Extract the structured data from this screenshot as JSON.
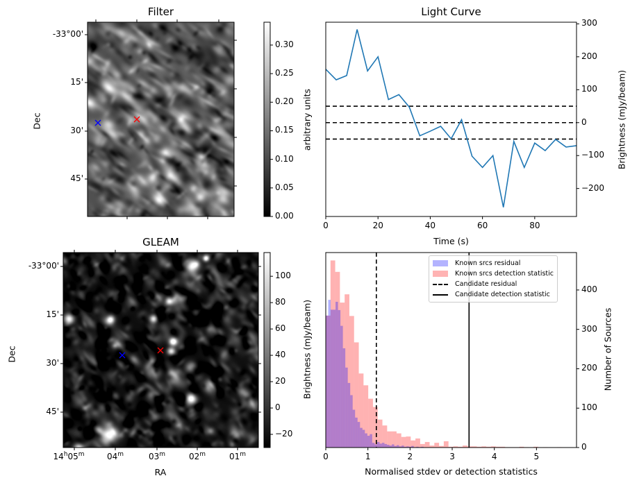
{
  "panels": {
    "filter": {
      "title": "Filter",
      "ylabel": "Dec",
      "yticks": [
        "-33°00'",
        "15'",
        "30'",
        "45'"
      ],
      "colorbar": {
        "label": "arbitrary units",
        "ticks": [
          "0.00",
          "0.05",
          "0.10",
          "0.15",
          "0.20",
          "0.25",
          "0.30"
        ],
        "range": [
          0.0,
          0.34
        ],
        "cmap": "gray"
      },
      "markers": [
        {
          "name": "known-source",
          "symbol": "x",
          "color": "#0000ff"
        },
        {
          "name": "candidate",
          "symbol": "x",
          "color": "#ff0000"
        }
      ]
    },
    "gleam": {
      "title": "GLEAM",
      "ylabel": "Dec",
      "xlabel": "RA",
      "yticks": [
        "-33°00'",
        "15'",
        "30'",
        "45'"
      ],
      "xticks": [
        {
          "main": "14",
          "h": "h",
          "mm": "05",
          "m": "m"
        },
        {
          "main": "",
          "h": "",
          "mm": "04",
          "m": "m"
        },
        {
          "main": "",
          "h": "",
          "mm": "03",
          "m": "m"
        },
        {
          "main": "",
          "h": "",
          "mm": "02",
          "m": "m"
        },
        {
          "main": "",
          "h": "",
          "mm": "01",
          "m": "m"
        }
      ],
      "colorbar": {
        "label": "Brightness (mJy/beam)",
        "ticks": [
          "−20",
          "0",
          "20",
          "40",
          "60",
          "80",
          "100"
        ],
        "range": [
          -30,
          118
        ],
        "cmap": "gray"
      },
      "markers": [
        {
          "name": "known-source",
          "symbol": "x",
          "color": "#0000ff"
        },
        {
          "name": "candidate",
          "symbol": "x",
          "color": "#ff0000"
        }
      ]
    }
  },
  "chart_data": [
    {
      "type": "line",
      "title": "Light Curve",
      "xlabel": "Time (s)",
      "ylabel": "Brightness (mJy/beam)",
      "xlim": [
        0,
        96
      ],
      "ylim": [
        -285,
        305
      ],
      "xticks": [
        "0",
        "20",
        "40",
        "60",
        "80"
      ],
      "xtick_values": [
        0,
        20,
        40,
        60,
        80
      ],
      "yticks": [
        "−200",
        "−100",
        "0",
        "100",
        "200",
        "300"
      ],
      "ytick_values": [
        -200,
        -100,
        0,
        100,
        200,
        300
      ],
      "y_axis_side": "right",
      "series": [
        {
          "name": "light-curve",
          "color": "#1f77b4",
          "x": [
            0,
            4,
            8,
            12,
            16,
            20,
            24,
            28,
            32,
            36,
            40,
            44,
            48,
            52,
            56,
            60,
            64,
            68,
            72,
            76,
            80,
            84,
            88,
            92,
            96
          ],
          "y": [
            162,
            130,
            143,
            283,
            157,
            200,
            70,
            85,
            47,
            -40,
            -26,
            -11,
            -49,
            9,
            -102,
            -136,
            -100,
            -257,
            -57,
            -136,
            -62,
            -85,
            -51,
            -74,
            -70
          ]
        }
      ],
      "hlines": [
        {
          "y": 50,
          "style": "dashed",
          "color": "#000000"
        },
        {
          "y": 0,
          "style": "dashed",
          "color": "#000000"
        },
        {
          "y": -50,
          "style": "dashed",
          "color": "#000000"
        }
      ]
    },
    {
      "type": "bar",
      "subtype": "histogram",
      "title": "",
      "xlabel": "Normalised stdev or detection statistics",
      "ylabel": "Number of Sources",
      "left_label": "Brightness (mJy/beam)",
      "xlim": [
        0,
        5.95
      ],
      "ylim": [
        0,
        495
      ],
      "xticks": [
        "0",
        "1",
        "2",
        "3",
        "4",
        "5"
      ],
      "xtick_values": [
        0,
        1,
        2,
        3,
        4,
        5
      ],
      "yticks": [
        "0",
        "100",
        "200",
        "300",
        "400"
      ],
      "ytick_values": [
        0,
        100,
        200,
        300,
        400
      ],
      "y_axis_side": "right",
      "legend_position": "top-right",
      "series": [
        {
          "name": "Known srcs residual",
          "color": "#0000ff",
          "alpha": 0.3,
          "bin_start": 0.0,
          "bin_width": 0.058,
          "values": [
            335,
            375,
            350,
            350,
            370,
            349,
            309,
            252,
            203,
            164,
            133,
            96,
            76,
            65,
            50,
            45,
            36,
            30,
            34,
            12,
            8,
            14,
            10,
            12,
            9,
            7,
            5,
            8,
            4,
            6,
            3,
            5,
            2,
            3,
            2,
            4,
            1,
            2,
            1,
            2
          ]
        },
        {
          "name": "Known srcs detection statistic",
          "color": "#ff0000",
          "alpha": 0.3,
          "bin_start": 0.0,
          "bin_width": 0.112,
          "values": [
            335,
            475,
            446,
            368,
            389,
            334,
            267,
            188,
            158,
            124,
            103,
            71,
            56,
            41,
            41,
            36,
            27,
            28,
            18,
            23,
            9,
            14,
            5,
            12,
            4,
            16,
            2,
            3,
            2,
            5,
            3,
            3,
            2,
            3,
            2,
            3,
            2,
            2,
            1,
            1,
            1,
            2,
            1,
            0,
            2,
            0,
            1,
            0,
            0,
            1,
            0,
            0
          ]
        }
      ],
      "vlines": [
        {
          "name": "Candidate residual",
          "x": 1.2,
          "style": "dashed",
          "color": "#000000"
        },
        {
          "name": "Candidate detection statistic",
          "x": 3.4,
          "style": "solid",
          "color": "#000000"
        }
      ],
      "legend": [
        {
          "label": "Known srcs residual",
          "kind": "patch",
          "color": "#b3b3ff"
        },
        {
          "label": "Known srcs detection statistic",
          "kind": "patch",
          "color": "#ffb3b3"
        },
        {
          "label": "Candidate residual",
          "kind": "dashed-line",
          "color": "#000000"
        },
        {
          "label": "Candidate detection statistic",
          "kind": "solid-line",
          "color": "#000000"
        }
      ]
    }
  ]
}
